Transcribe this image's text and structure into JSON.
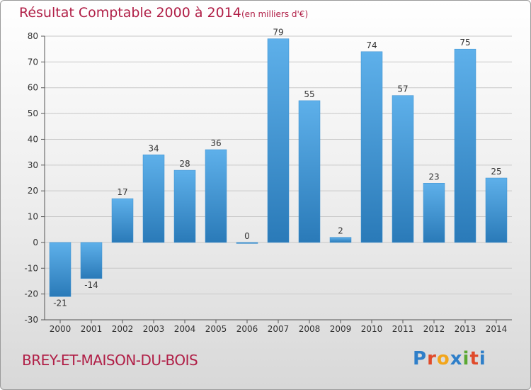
{
  "header": {
    "title": "Résultat Comptable 2000 à 2014",
    "unit": "(en milliers d'€)"
  },
  "footer": {
    "commune": "BREY-ET-MAISON-DU-BOIS",
    "logo_text": "Proxiti"
  },
  "colors": {
    "title": "#b01e46",
    "bar_light": "#5eb0ea",
    "bar_dark": "#2a7ab8",
    "grid": "#c8c8c8"
  },
  "chart_data": {
    "type": "bar",
    "title": "Résultat Comptable 2000 à 2014",
    "subtitle": "(en milliers d'€)",
    "xlabel": "",
    "ylabel": "",
    "ylim": [
      -30,
      80
    ],
    "yticks": [
      -30,
      -20,
      -10,
      0,
      10,
      20,
      30,
      40,
      50,
      60,
      70,
      80
    ],
    "grid": true,
    "legend": "none",
    "categories": [
      "2000",
      "2001",
      "2002",
      "2003",
      "2004",
      "2005",
      "2006",
      "2007",
      "2008",
      "2009",
      "2010",
      "2011",
      "2012",
      "2013",
      "2014"
    ],
    "values": [
      -21,
      -14,
      17,
      34,
      28,
      36,
      0,
      79,
      55,
      2,
      74,
      57,
      23,
      75,
      25
    ]
  }
}
